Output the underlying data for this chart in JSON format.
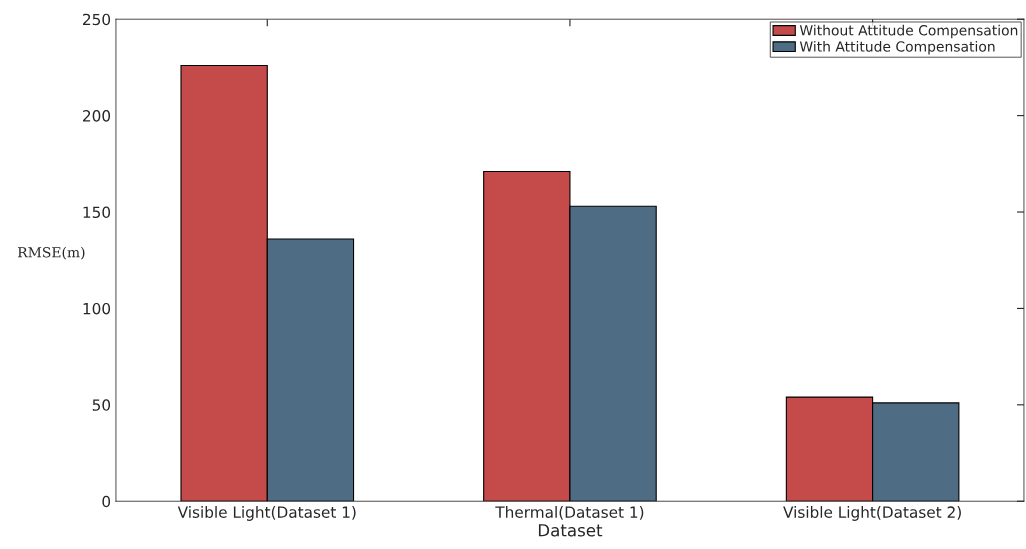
{
  "chart_data": {
    "type": "bar",
    "xlabel": "Dataset",
    "ylabel": "RMSE(m)",
    "categories": [
      "Visible Light(Dataset 1)",
      "Thermal(Dataset 1)",
      "Visible Light(Dataset 2)"
    ],
    "series": [
      {
        "name": "Without Attitude Compensation",
        "color": "#c44b4a",
        "values": [
          226,
          171,
          54
        ]
      },
      {
        "name": "With Attitude Compensation",
        "color": "#4e6c83",
        "values": [
          136,
          153,
          51
        ]
      }
    ],
    "ylim": [
      0,
      250
    ],
    "yticks": [
      0,
      50,
      100,
      150,
      200,
      250
    ],
    "grid": false,
    "legend": "top right"
  }
}
